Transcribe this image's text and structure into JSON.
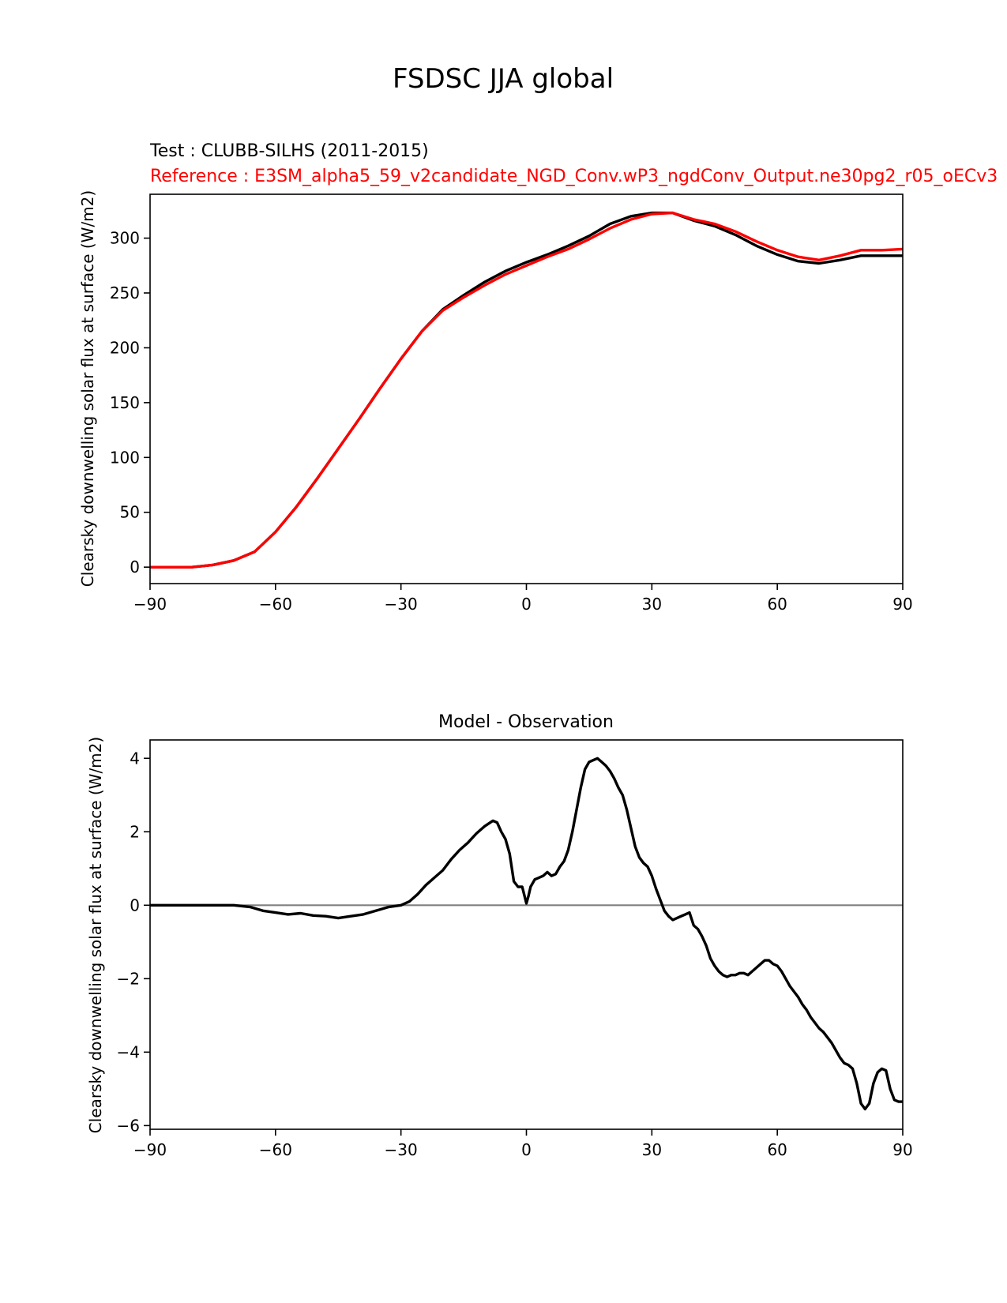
{
  "figure": {
    "suptitle": "FSDSC JJA global"
  },
  "colors": {
    "test": "#000000",
    "reference": "#ff0000",
    "zero_line": "#808080",
    "axis": "#000000"
  },
  "chart_data": [
    {
      "type": "line",
      "title_test": "Test : CLUBB-SILHS (2011-2015)",
      "title_reference": "Reference : E3SM_alpha5_59_v2candidate_NGD_Conv.wP3_ngdConv_Output.ne30pg2_r05_oECv3",
      "xlabel": "",
      "ylabel": "Clearsky downwelling solar flux at surface (W/m2)",
      "xlim": [
        -90,
        90
      ],
      "ylim": [
        -15,
        340
      ],
      "xticks": [
        -90,
        -60,
        -30,
        0,
        30,
        60,
        90
      ],
      "xtick_labels": [
        "−90",
        "−60",
        "−30",
        "0",
        "30",
        "60",
        "90"
      ],
      "yticks": [
        0,
        50,
        100,
        150,
        200,
        250,
        300
      ],
      "ytick_labels": [
        "0",
        "50",
        "100",
        "150",
        "200",
        "250",
        "300"
      ],
      "series": [
        {
          "name": "test",
          "x": [
            -90,
            -80,
            -75,
            -70,
            -65,
            -60,
            -55,
            -50,
            -45,
            -40,
            -35,
            -30,
            -25,
            -20,
            -15,
            -10,
            -5,
            0,
            5,
            10,
            15,
            20,
            25,
            30,
            35,
            40,
            45,
            50,
            55,
            60,
            65,
            70,
            75,
            80,
            85,
            90
          ],
          "y": [
            0,
            0,
            2,
            6,
            14,
            32,
            55,
            81,
            108,
            135,
            163,
            190,
            215,
            235,
            248,
            260,
            270,
            278,
            285,
            293,
            302,
            313,
            320,
            323,
            323,
            316,
            311,
            303,
            293,
            285,
            279,
            277,
            280,
            284,
            284,
            284
          ]
        },
        {
          "name": "reference",
          "x": [
            -90,
            -80,
            -75,
            -70,
            -65,
            -60,
            -55,
            -50,
            -45,
            -40,
            -35,
            -30,
            -25,
            -20,
            -15,
            -10,
            -5,
            0,
            5,
            10,
            15,
            20,
            25,
            30,
            35,
            40,
            45,
            50,
            55,
            60,
            65,
            70,
            75,
            80,
            85,
            90
          ],
          "y": [
            0,
            0,
            2,
            6,
            14,
            32,
            55,
            81,
            108,
            135,
            163,
            190,
            215,
            234,
            246,
            257,
            267,
            275,
            283,
            290,
            299,
            309,
            317,
            322,
            323,
            317,
            313,
            306,
            297,
            289,
            283,
            280,
            284,
            289,
            289,
            290
          ]
        }
      ]
    },
    {
      "type": "line",
      "title": "Model - Observation",
      "xlabel": "",
      "ylabel": "Clearsky downwelling solar flux at surface (W/m2)",
      "xlim": [
        -90,
        90
      ],
      "ylim": [
        -6.1,
        4.5
      ],
      "xticks": [
        -90,
        -60,
        -30,
        0,
        30,
        60,
        90
      ],
      "xtick_labels": [
        "−90",
        "−60",
        "−30",
        "0",
        "30",
        "60",
        "90"
      ],
      "yticks": [
        4,
        2,
        0,
        -2,
        -4,
        -6
      ],
      "ytick_labels": [
        "4",
        "2",
        "0",
        "−2",
        "−4",
        "−6"
      ],
      "zero_line": 0,
      "series": [
        {
          "name": "difference",
          "x": [
            -90,
            -80,
            -75,
            -70,
            -66,
            -63,
            -60,
            -57,
            -54,
            -51,
            -48,
            -45,
            -42,
            -39,
            -36,
            -33,
            -30,
            -28,
            -26,
            -24,
            -22,
            -20,
            -18,
            -16,
            -14,
            -12,
            -10,
            -8,
            -7,
            -6,
            -5,
            -4,
            -3,
            -2,
            -1,
            0,
            0.5,
            1,
            2,
            3,
            4,
            5,
            6,
            7,
            8,
            9,
            10,
            11,
            12,
            13,
            14,
            15,
            16,
            17,
            18,
            19,
            20,
            21,
            22,
            23,
            24,
            25,
            26,
            27,
            28,
            29,
            30,
            31,
            32,
            33,
            34,
            35,
            36,
            37,
            38,
            39,
            40,
            41,
            42,
            43,
            44,
            45,
            46,
            47,
            48,
            49,
            50,
            51,
            52,
            53,
            54,
            55,
            56,
            57,
            58,
            59,
            60,
            61,
            62,
            63,
            64,
            65,
            66,
            67,
            68,
            69,
            70,
            71,
            72,
            73,
            74,
            75,
            76,
            77,
            78,
            79,
            80,
            81,
            82,
            83,
            84,
            85,
            86,
            87,
            88,
            89,
            90
          ],
          "y": [
            0,
            0,
            0,
            0,
            -0.05,
            -0.15,
            -0.2,
            -0.25,
            -0.22,
            -0.28,
            -0.3,
            -0.35,
            -0.3,
            -0.25,
            -0.15,
            -0.05,
            0,
            0.1,
            0.3,
            0.55,
            0.75,
            0.95,
            1.25,
            1.5,
            1.7,
            1.95,
            2.15,
            2.3,
            2.25,
            2.0,
            1.8,
            1.4,
            0.65,
            0.5,
            0.5,
            0.05,
            0.25,
            0.5,
            0.7,
            0.75,
            0.8,
            0.9,
            0.8,
            0.85,
            1.05,
            1.2,
            1.5,
            2.0,
            2.6,
            3.2,
            3.7,
            3.9,
            3.95,
            4.0,
            3.9,
            3.8,
            3.65,
            3.45,
            3.2,
            3.0,
            2.6,
            2.1,
            1.6,
            1.3,
            1.15,
            1.05,
            0.8,
            0.45,
            0.15,
            -0.15,
            -0.3,
            -0.4,
            -0.35,
            -0.3,
            -0.25,
            -0.2,
            -0.55,
            -0.65,
            -0.85,
            -1.1,
            -1.45,
            -1.65,
            -1.8,
            -1.9,
            -1.95,
            -1.9,
            -1.9,
            -1.85,
            -1.85,
            -1.9,
            -1.8,
            -1.7,
            -1.6,
            -1.5,
            -1.5,
            -1.6,
            -1.65,
            -1.8,
            -2.0,
            -2.2,
            -2.35,
            -2.5,
            -2.7,
            -2.85,
            -3.05,
            -3.2,
            -3.35,
            -3.45,
            -3.6,
            -3.75,
            -3.95,
            -4.15,
            -4.3,
            -4.35,
            -4.45,
            -4.85,
            -5.4,
            -5.55,
            -5.4,
            -4.85,
            -4.55,
            -4.45,
            -4.5,
            -5.0,
            -5.3,
            -5.35,
            -5.35
          ]
        }
      ]
    }
  ]
}
